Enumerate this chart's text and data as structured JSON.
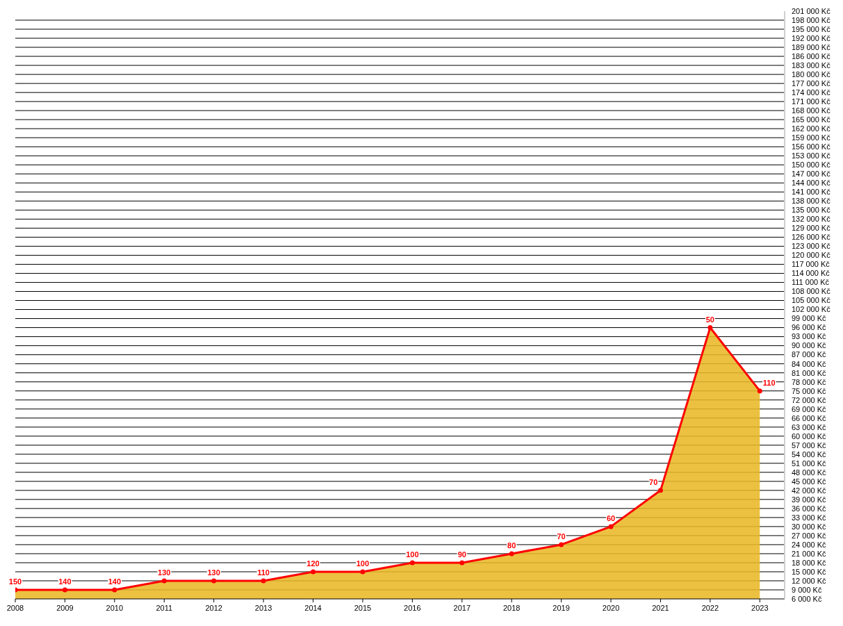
{
  "chart_data": {
    "type": "area",
    "x": [
      2008,
      2009,
      2010,
      2011,
      2012,
      2013,
      2014,
      2015,
      2016,
      2017,
      2018,
      2019,
      2020,
      2021,
      2022,
      2023
    ],
    "series": [
      {
        "color": "#e9b826",
        "values": [
          9000,
          9000,
          9000,
          12000,
          12000,
          12000,
          15000,
          15000,
          18000,
          18000,
          21000,
          24000,
          30000,
          42000,
          96000,
          75000
        ]
      }
    ],
    "annotations": [
      {
        "text": "150",
        "x": 2008,
        "y": 9000
      },
      {
        "text": "140",
        "x": 2009,
        "y": 9000
      },
      {
        "text": "140",
        "x": 2010,
        "y": 9000
      },
      {
        "text": "130",
        "x": 2011,
        "y": 12000
      },
      {
        "text": "130",
        "x": 2012,
        "y": 12000
      },
      {
        "text": "110",
        "x": 2013,
        "y": 12000
      },
      {
        "text": "120",
        "x": 2014,
        "y": 15000
      },
      {
        "text": "100",
        "x": 2015,
        "y": 15000
      },
      {
        "text": "100",
        "x": 2016,
        "y": 18000
      },
      {
        "text": "90",
        "x": 2017,
        "y": 18000
      },
      {
        "text": "80",
        "x": 2018,
        "y": 21000
      },
      {
        "text": "70",
        "x": 2019,
        "y": 24000
      },
      {
        "text": "60",
        "x": 2020,
        "y": 30000
      },
      {
        "text": "70",
        "x": 2021,
        "y": 42000
      },
      {
        "text": "50",
        "x": 2022,
        "y": 96000
      },
      {
        "text": "110",
        "x": 2023,
        "y": 75000
      }
    ],
    "xlim": [
      2008,
      2023.5
    ],
    "xticks": [
      2008,
      2009,
      2010,
      2011,
      2012,
      2013,
      2014,
      2015,
      2016,
      2017,
      2018,
      2019,
      2020,
      2021,
      2022,
      2023
    ],
    "ylim": [
      6000,
      201000
    ],
    "yticks": [
      {
        "value": 6000,
        "label": "6 000 Kč"
      },
      {
        "value": 9000,
        "label": "9 000 Kč"
      },
      {
        "value": 12000,
        "label": "12 000 Kč"
      },
      {
        "value": 15000,
        "label": "15 000 Kč"
      },
      {
        "value": 18000,
        "label": "18 000 Kč"
      },
      {
        "value": 21000,
        "label": "21 000 Kč"
      },
      {
        "value": 24000,
        "label": "24 000 Kč"
      },
      {
        "value": 27000,
        "label": "27 000 Kč"
      },
      {
        "value": 30000,
        "label": "30 000 Kč"
      },
      {
        "value": 33000,
        "label": "33 000 Kč"
      },
      {
        "value": 36000,
        "label": "36 000 Kč"
      },
      {
        "value": 39000,
        "label": "39 000 Kč"
      },
      {
        "value": 42000,
        "label": "42 000 Kč"
      },
      {
        "value": 45000,
        "label": "45 000 Kč"
      },
      {
        "value": 48000,
        "label": "48 000 Kč"
      },
      {
        "value": 51000,
        "label": "51 000 Kč"
      },
      {
        "value": 54000,
        "label": "54 000 Kč"
      },
      {
        "value": 57000,
        "label": "57 000 Kč"
      },
      {
        "value": 60000,
        "label": "60 000 Kč"
      },
      {
        "value": 63000,
        "label": "63 000 Kč"
      },
      {
        "value": 66000,
        "label": "66 000 Kč"
      },
      {
        "value": 69000,
        "label": "69 000 Kč"
      },
      {
        "value": 72000,
        "label": "72 000 Kč"
      },
      {
        "value": 75000,
        "label": "75 000 Kč"
      },
      {
        "value": 78000,
        "label": "78 000 Kč"
      },
      {
        "value": 81000,
        "label": "81 000 Kč"
      },
      {
        "value": 84000,
        "label": "84 000 Kč"
      },
      {
        "value": 87000,
        "label": "87 000 Kč"
      },
      {
        "value": 90000,
        "label": "90 000 Kč"
      },
      {
        "value": 93000,
        "label": "93 000 Kč"
      },
      {
        "value": 96000,
        "label": "96 000 Kč"
      },
      {
        "value": 99000,
        "label": "99 000 Kč"
      },
      {
        "value": 102000,
        "label": "102 000 Kč"
      },
      {
        "value": 105000,
        "label": "105 000 Kč"
      },
      {
        "value": 108000,
        "label": "108 000 Kč"
      },
      {
        "value": 111000,
        "label": "111 000 Kč"
      },
      {
        "value": 114000,
        "label": "114 000 Kč"
      },
      {
        "value": 117000,
        "label": "117 000 Kč"
      },
      {
        "value": 120000,
        "label": "120 000 Kč"
      },
      {
        "value": 123000,
        "label": "123 000 Kč"
      },
      {
        "value": 126000,
        "label": "126 000 Kč"
      },
      {
        "value": 129000,
        "label": "129 000 Kč"
      },
      {
        "value": 132000,
        "label": "132 000 Kč"
      },
      {
        "value": 135000,
        "label": "135 000 Kč"
      },
      {
        "value": 138000,
        "label": "138 000 Kč"
      },
      {
        "value": 141000,
        "label": "141 000 Kč"
      },
      {
        "value": 144000,
        "label": "144 000 Kč"
      },
      {
        "value": 147000,
        "label": "147 000 Kč"
      },
      {
        "value": 150000,
        "label": "150 000 Kč"
      },
      {
        "value": 153000,
        "label": "153 000 Kč"
      },
      {
        "value": 156000,
        "label": "156 000 Kč"
      },
      {
        "value": 159000,
        "label": "159 000 Kč"
      },
      {
        "value": 162000,
        "label": "162 000 Kč"
      },
      {
        "value": 165000,
        "label": "165 000 Kč"
      },
      {
        "value": 168000,
        "label": "168 000 Kč"
      },
      {
        "value": 171000,
        "label": "171 000 Kč"
      },
      {
        "value": 174000,
        "label": "174 000 Kč"
      },
      {
        "value": 177000,
        "label": "177 000 Kč"
      },
      {
        "value": 180000,
        "label": "180 000 Kč"
      },
      {
        "value": 183000,
        "label": "183 000 Kč"
      },
      {
        "value": 186000,
        "label": "186 000 Kč"
      },
      {
        "value": 189000,
        "label": "189 000 Kč"
      },
      {
        "value": 192000,
        "label": "192 000 Kč"
      },
      {
        "value": 195000,
        "label": "195 000 Kč"
      },
      {
        "value": 198000,
        "label": "198 000 Kč"
      },
      {
        "value": 201000,
        "label": "201 000 Kč"
      }
    ],
    "grid": "y",
    "marker": "circle",
    "line_style": "solid"
  }
}
